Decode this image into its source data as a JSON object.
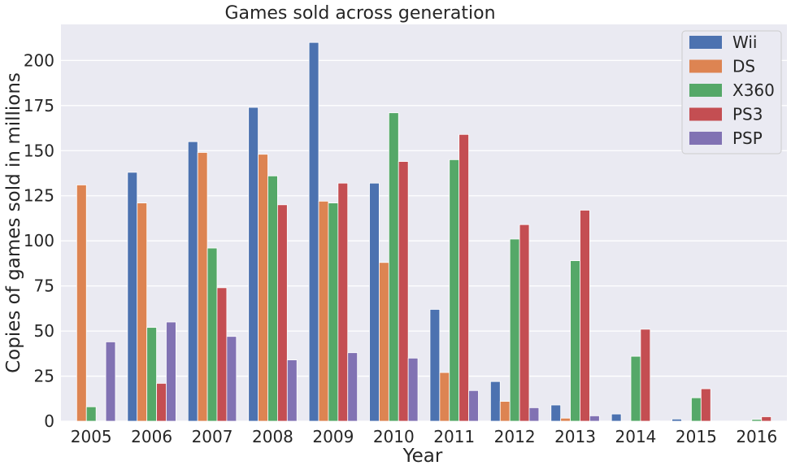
{
  "chart_data": {
    "type": "bar",
    "title": "Games sold across generation",
    "xlabel": "Year",
    "ylabel": "Copies of games sold in millions",
    "ylim": [
      0,
      220
    ],
    "yticks": [
      0,
      25,
      50,
      75,
      100,
      125,
      150,
      175,
      200
    ],
    "grid": true,
    "legend_position": "top-right",
    "categories": [
      "2005",
      "2006",
      "2007",
      "2008",
      "2009",
      "2010",
      "2011",
      "2012",
      "2013",
      "2014",
      "2015",
      "2016"
    ],
    "series": [
      {
        "name": "Wii",
        "color": "#4c72b0",
        "values": [
          0,
          138,
          155,
          174,
          210,
          132,
          62,
          22,
          9,
          4,
          1.2,
          0
        ]
      },
      {
        "name": "DS",
        "color": "#dd8452",
        "values": [
          131,
          121,
          149,
          148,
          122,
          88,
          27,
          11,
          1.7,
          0,
          0,
          0
        ]
      },
      {
        "name": "X360",
        "color": "#55a868",
        "values": [
          8,
          52,
          96,
          136,
          121,
          171,
          145,
          101,
          89,
          36,
          13,
          1
        ]
      },
      {
        "name": "PS3",
        "color": "#c44e52",
        "values": [
          0,
          21,
          74,
          120,
          132,
          144,
          159,
          109,
          117,
          51,
          18,
          2.5
        ]
      },
      {
        "name": "PSP",
        "color": "#8172b3",
        "values": [
          44,
          55,
          47,
          34,
          38,
          35,
          17,
          7.5,
          3,
          0.2,
          0,
          0
        ]
      }
    ]
  }
}
